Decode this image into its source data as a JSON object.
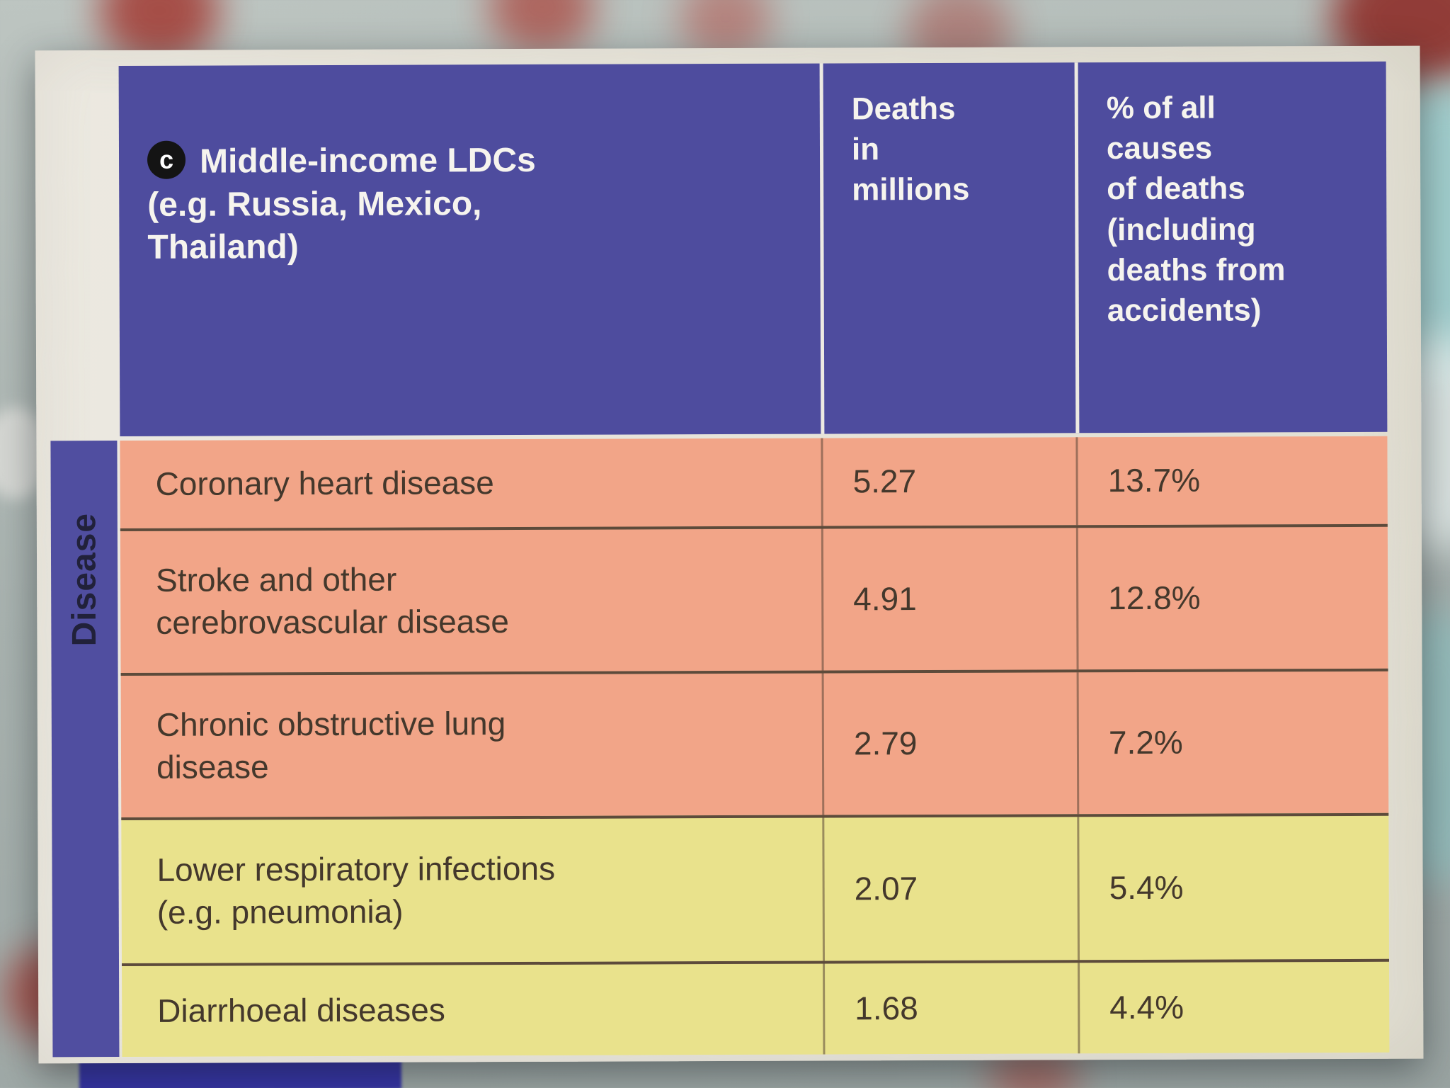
{
  "colors": {
    "header_purple": "#4e4c9e",
    "band_purple": "#504ea0",
    "row_salmon": "#f2a588",
    "row_yellow": "#e9e28c",
    "header_text": "#f6f4ee",
    "body_text": "#44382c",
    "separator_dark": "#5d4b3b",
    "badge_bg": "#141414",
    "badge_text": "#ffffff"
  },
  "table": {
    "badge": "c",
    "title": "Middle-income LDCs\n(e.g. Russia, Mexico,\nThailand)",
    "columns": {
      "deaths": "Deaths\nin\nmillions",
      "percent": "% of all\ncauses\nof deaths\n(including\ndeaths from\naccidents)"
    },
    "axis_label": "Disease",
    "rows": [
      {
        "disease": "Coronary heart disease",
        "deaths": "5.27",
        "percent": "13.7%"
      },
      {
        "disease": "Stroke and other\ncerebrovascular disease",
        "deaths": "4.91",
        "percent": "12.8%"
      },
      {
        "disease": "Chronic obstructive lung\ndisease",
        "deaths": "2.79",
        "percent": "7.2%"
      },
      {
        "disease": "Lower respiratory infections\n(e.g. pneumonia)",
        "deaths": "2.07",
        "percent": "5.4%"
      },
      {
        "disease": "Diarrhoeal diseases",
        "deaths": "1.68",
        "percent": "4.4%"
      }
    ]
  },
  "chart_data": {
    "type": "table",
    "title": "Middle-income LDCs (e.g. Russia, Mexico, Thailand)",
    "row_axis": "Disease",
    "columns": [
      "Disease",
      "Deaths in millions",
      "% of all causes of deaths (including deaths from accidents)"
    ],
    "rows": [
      [
        "Coronary heart disease",
        5.27,
        "13.7%"
      ],
      [
        "Stroke and other cerebrovascular disease",
        4.91,
        "12.8%"
      ],
      [
        "Chronic obstructive lung disease",
        2.79,
        "7.2%"
      ],
      [
        "Lower respiratory infections (e.g. pneumonia)",
        2.07,
        "5.4%"
      ],
      [
        "Diarrhoeal diseases",
        1.68,
        "4.4%"
      ]
    ]
  }
}
